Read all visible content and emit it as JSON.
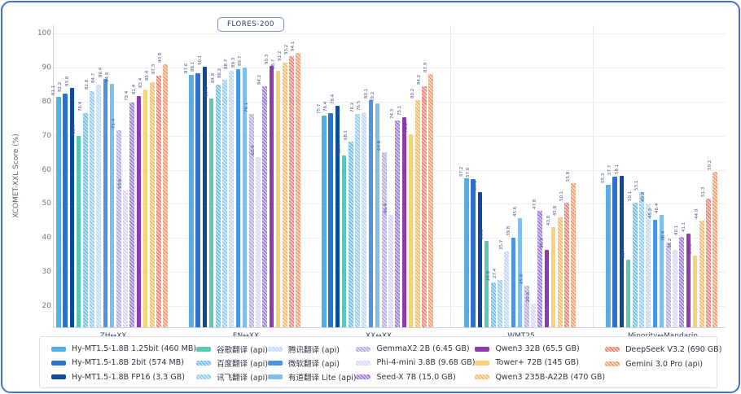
{
  "title_badge": "FLORES-200",
  "y_axis": {
    "label": "XCOMET-XXL Score (%)",
    "ticks": [
      "100",
      "90",
      "80",
      "70",
      "60",
      "50",
      "40",
      "30",
      "20"
    ]
  },
  "chart_data": {
    "type": "bar",
    "title": "FLORES-200",
    "ylabel": "XCOMET-XXL Score (%)",
    "ylim": [
      15,
      103
    ],
    "grid": true,
    "legend_position": "bottom",
    "categories": [
      "ZH↔XX",
      "EN↔XX",
      "XX↔XX",
      "WMT25",
      "Minority↔Mandarin"
    ],
    "series": [
      {
        "name": "Hy-MT1.5-1.8B 1.25bit (460 MB)",
        "color": "#55aee6",
        "pattern": "solid",
        "values": [
          81.1,
          87.6,
          75.7,
          57.2,
          55.3
        ]
      },
      {
        "name": "Hy-MT1.5-1.8B 2bit (574 MB)",
        "color": "#2b72cf",
        "pattern": "solid",
        "values": [
          82.2,
          88.1,
          76.4,
          57.0,
          57.7
        ]
      },
      {
        "name": "Hy-MT1.5-1.8B FP16 (3.3 GB)",
        "color": "#0d4a9d",
        "pattern": "solid",
        "values": [
          83.8,
          90.1,
          78.4,
          53.1,
          58.1
        ]
      },
      {
        "name": "谷歌翻译 (api)",
        "color": "#5bc8b4",
        "pattern": "solid",
        "values": [
          69.7,
          80.6,
          63.9,
          38.8,
          33.4
        ]
      },
      {
        "name": "百度翻译 (api)",
        "color": "#6cbcea",
        "pattern": "hatched",
        "values": [
          76.4,
          84.8,
          68.1,
          26.8,
          50.1
        ]
      },
      {
        "name": "讯飞翻译 (api)",
        "color": "#93cbf0",
        "pattern": "hatched",
        "values": [
          82.8,
          86.2,
          76.2,
          27.4,
          53.1
        ]
      },
      {
        "name": "腾讯翻译 (api)",
        "color": "#bcd8f2",
        "pattern": "hatched",
        "values": [
          84.7,
          88.7,
          76.5,
          35.7,
          49.8
        ]
      },
      {
        "name": "微软翻译 (api)",
        "color": "#4e94e4",
        "pattern": "solid",
        "values": [
          86.4,
          89.3,
          80.1,
          39.8,
          45.2
        ]
      },
      {
        "name": "有道翻译 Lite (api)",
        "color": "#7fbeee",
        "pattern": "solid",
        "values": [
          84.9,
          89.7,
          79.2,
          45.6,
          46.4
        ]
      },
      {
        "name": "GemmaX2 2B (6.45 GB)",
        "color": "#b1ace0",
        "pattern": "hatched",
        "values": [
          71.4,
          76.1,
          64.8,
          25.8,
          38.4
        ]
      },
      {
        "name": "Phi-4-mini 3.8B (9.68 GB)",
        "color": "#d9d5f0",
        "pattern": "hatched",
        "values": [
          53.6,
          63.4,
          46.4,
          20.6,
          36.2
        ]
      },
      {
        "name": "Seed-X 7B (15.0 GB)",
        "color": "#9a7bd4",
        "pattern": "hatched",
        "values": [
          79.4,
          84.2,
          74.3,
          47.8,
          40.1
        ]
      },
      {
        "name": "Qwen3 32B (65.5 GB)",
        "color": "#9039ae",
        "pattern": "solid",
        "values": [
          81.4,
          90.3,
          75.1,
          36.3,
          41.1
        ]
      },
      {
        "name": "Tower+ 72B (145 GB)",
        "color": "#f5d376",
        "pattern": "solid",
        "values": [
          83.4,
          88.7,
          70.2,
          43.0,
          34.5
        ]
      },
      {
        "name": "Qwen3 235B-A22B (470 GB)",
        "color": "#f2bc66",
        "pattern": "hatched",
        "values": [
          85.4,
          91.2,
          80.2,
          45.8,
          44.9
        ]
      },
      {
        "name": "DeepSeek V3.2 (690 GB)",
        "color": "#e98273",
        "pattern": "hatched",
        "values": [
          87.3,
          93.2,
          84.2,
          50.1,
          51.3
        ]
      },
      {
        "name": "Gemini 3.0 Pro (api)",
        "color": "#ef9d6b",
        "pattern": "hatched",
        "values": [
          90.8,
          94.1,
          87.9,
          55.8,
          59.2
        ]
      }
    ]
  },
  "legend_columns": [
    [
      0,
      1,
      2
    ],
    [
      3,
      4,
      5
    ],
    [
      6,
      7,
      8
    ],
    [
      9,
      10,
      11
    ],
    [
      12,
      13,
      14
    ],
    [
      15,
      16
    ]
  ]
}
